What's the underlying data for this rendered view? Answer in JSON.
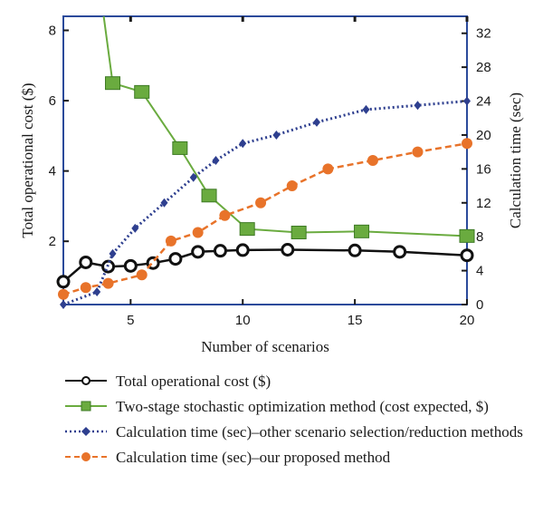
{
  "chart_data": {
    "type": "line",
    "xlabel": "Number of scenarios",
    "ylabel_left": "Total operational cost ($)",
    "ylabel_right": "Calculation time (sec)",
    "x_ticks": [
      5,
      10,
      15,
      20
    ],
    "y_left_ticks": [
      2,
      4,
      6,
      8
    ],
    "y_right_ticks": [
      0,
      4,
      8,
      12,
      16,
      20,
      24,
      28,
      32
    ],
    "xlim": [
      2,
      20
    ],
    "ylim_left": [
      0.2,
      8.4
    ],
    "ylim_right": [
      0,
      34
    ],
    "grid": false,
    "legend_placement": "bottom",
    "series": [
      {
        "name": "Total operational cost ($)",
        "axis": "left",
        "color": "#111111",
        "marker": "open-circle",
        "line_style": "solid",
        "x": [
          2,
          3,
          4,
          5,
          6,
          7,
          8,
          9,
          10,
          12,
          15,
          17,
          20
        ],
        "y": [
          0.85,
          1.4,
          1.28,
          1.3,
          1.38,
          1.5,
          1.7,
          1.73,
          1.75,
          1.76,
          1.74,
          1.7,
          1.6
        ]
      },
      {
        "name": "Two-stage stochastic optimization method (cost expected, $)",
        "axis": "left",
        "color": "#6aab3f",
        "marker": "square",
        "line_style": "solid",
        "x": [
          3.8,
          4.2,
          5.5,
          7.2,
          8.5,
          10.2,
          12.5,
          15.3,
          20
        ],
        "y": [
          8.4,
          6.5,
          6.25,
          4.65,
          3.3,
          2.35,
          2.25,
          2.28,
          2.15
        ],
        "marker_mask": [
          false,
          true,
          true,
          true,
          true,
          true,
          true,
          true,
          true
        ]
      },
      {
        "name": "Calculation time (sec)–other scenario selection/reduction methods",
        "axis": "right",
        "color": "#2e3f8f",
        "marker": "diamond",
        "line_style": "dotted",
        "x": [
          2,
          3.5,
          4.2,
          5.2,
          6.5,
          7.8,
          8.8,
          10,
          11.5,
          13.3,
          15.5,
          17.8,
          20
        ],
        "y": [
          0,
          1.5,
          6,
          9,
          12,
          15,
          17,
          19,
          20,
          21.5,
          23,
          23.5,
          24
        ]
      },
      {
        "name": "Calculation time (sec)–our proposed method",
        "axis": "right",
        "color": "#e8732a",
        "marker": "circle",
        "line_style": "dashed",
        "x": [
          2,
          3,
          4,
          5.5,
          6.8,
          8,
          9.2,
          10.8,
          12.2,
          13.8,
          15.8,
          17.8,
          20
        ],
        "y": [
          1.2,
          2,
          2.5,
          3.5,
          7.5,
          8.5,
          10.5,
          12,
          14,
          16,
          17,
          18,
          19
        ]
      }
    ]
  },
  "legend": {
    "entries": [
      {
        "label": "Total operational cost ($)"
      },
      {
        "label": "Two-stage stochastic optimization method (cost expected, $)"
      },
      {
        "label": "Calculation time (sec)–other scenario selection/reduction methods"
      },
      {
        "label": "Calculation time (sec)–our proposed method"
      }
    ]
  }
}
